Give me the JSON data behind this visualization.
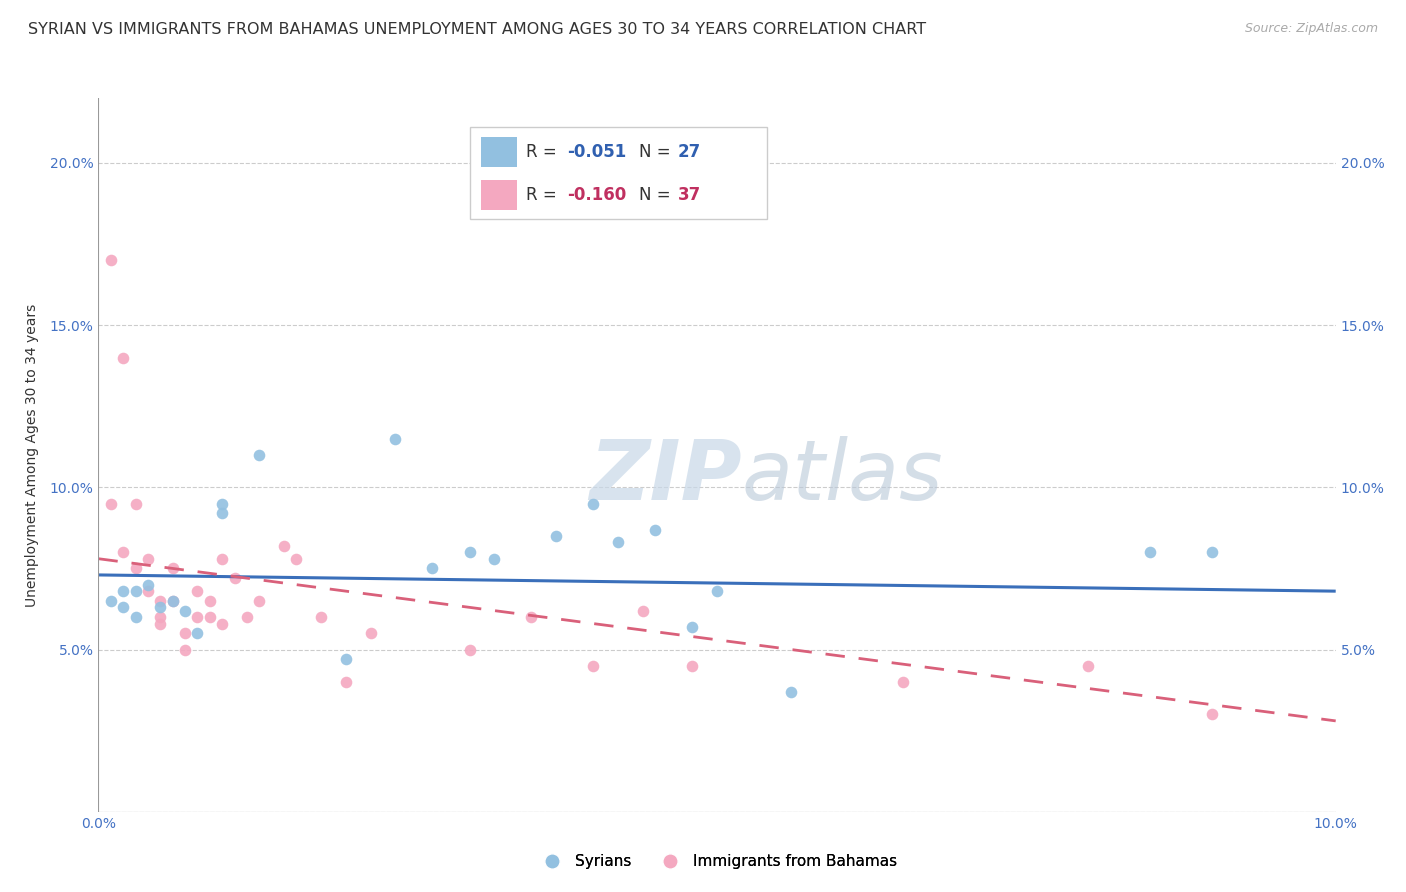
{
  "title": "SYRIAN VS IMMIGRANTS FROM BAHAMAS UNEMPLOYMENT AMONG AGES 30 TO 34 YEARS CORRELATION CHART",
  "source": "Source: ZipAtlas.com",
  "ylabel": "Unemployment Among Ages 30 to 34 years",
  "xlim": [
    0.0,
    0.1
  ],
  "ylim": [
    0.0,
    0.22
  ],
  "xticks": [
    0.0,
    0.02,
    0.04,
    0.06,
    0.08,
    0.1
  ],
  "yticks": [
    0.0,
    0.05,
    0.1,
    0.15,
    0.2
  ],
  "syrians_R": "-0.051",
  "syrians_N": "27",
  "bahamas_R": "-0.160",
  "bahamas_N": "37",
  "blue_color": "#92c0e0",
  "pink_color": "#f4a8c0",
  "blue_line_color": "#3a6fba",
  "pink_line_color": "#d9607a",
  "watermark_zip": "ZIP",
  "watermark_atlas": "atlas",
  "grid_color": "#cccccc",
  "bg_color": "#ffffff",
  "title_fontsize": 11.5,
  "label_fontsize": 10,
  "tick_fontsize": 10,
  "legend_fontsize": 12,
  "marker_size": 70,
  "syrians_x": [
    0.001,
    0.002,
    0.002,
    0.003,
    0.003,
    0.004,
    0.005,
    0.006,
    0.007,
    0.008,
    0.01,
    0.01,
    0.013,
    0.02,
    0.024,
    0.027,
    0.03,
    0.032,
    0.037,
    0.04,
    0.042,
    0.045,
    0.048,
    0.05,
    0.056,
    0.085,
    0.09
  ],
  "syrians_y": [
    0.065,
    0.063,
    0.068,
    0.06,
    0.068,
    0.07,
    0.063,
    0.065,
    0.062,
    0.055,
    0.095,
    0.092,
    0.11,
    0.047,
    0.115,
    0.075,
    0.08,
    0.078,
    0.085,
    0.095,
    0.083,
    0.087,
    0.057,
    0.068,
    0.037,
    0.08,
    0.08
  ],
  "bahamas_x": [
    0.001,
    0.001,
    0.002,
    0.002,
    0.003,
    0.003,
    0.004,
    0.004,
    0.005,
    0.005,
    0.005,
    0.006,
    0.006,
    0.007,
    0.007,
    0.008,
    0.008,
    0.009,
    0.009,
    0.01,
    0.01,
    0.011,
    0.012,
    0.013,
    0.015,
    0.016,
    0.018,
    0.02,
    0.022,
    0.03,
    0.035,
    0.04,
    0.044,
    0.048,
    0.065,
    0.08,
    0.09
  ],
  "bahamas_y": [
    0.17,
    0.095,
    0.14,
    0.08,
    0.095,
    0.075,
    0.078,
    0.068,
    0.065,
    0.06,
    0.058,
    0.075,
    0.065,
    0.055,
    0.05,
    0.06,
    0.068,
    0.065,
    0.06,
    0.078,
    0.058,
    0.072,
    0.06,
    0.065,
    0.082,
    0.078,
    0.06,
    0.04,
    0.055,
    0.05,
    0.06,
    0.045,
    0.062,
    0.045,
    0.04,
    0.045,
    0.03
  ],
  "blue_line_x": [
    0.0,
    0.1
  ],
  "blue_line_y": [
    0.073,
    0.068
  ],
  "pink_line_x": [
    0.0,
    0.1
  ],
  "pink_line_y": [
    0.078,
    0.028
  ]
}
